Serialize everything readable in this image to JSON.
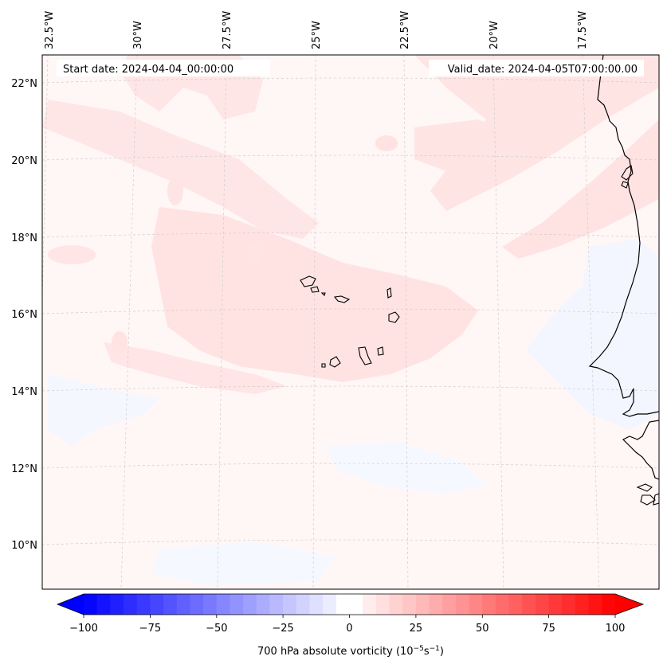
{
  "map": {
    "start_label": "Start date: 2024-04-04_00:00:00",
    "valid_label": "Valid_date: 2024-04-05T07:00:00.00",
    "lon_ticks": [
      "32.5°W",
      "30°W",
      "27.5°W",
      "25°W",
      "22.5°W",
      "20°W",
      "17.5°W"
    ],
    "lat_ticks": [
      "22°N",
      "20°N",
      "18°N",
      "16°N",
      "14°N",
      "12°N",
      "10°N"
    ],
    "field_colors": {
      "base": "#fff6f6",
      "light_red": "#ffe3e3",
      "light_blue": "#f6f8ff"
    }
  },
  "colorbar": {
    "min": -100,
    "max": 100,
    "step": 5,
    "tick_labels": [
      "−100",
      "−75",
      "−50",
      "−25",
      "0",
      "25",
      "50",
      "75",
      "100"
    ],
    "label_text": "700 hPa absolute vorticity (10",
    "label_exp1": "−5",
    "label_mid": "s",
    "label_exp2": "−1",
    "label_close": ")"
  }
}
